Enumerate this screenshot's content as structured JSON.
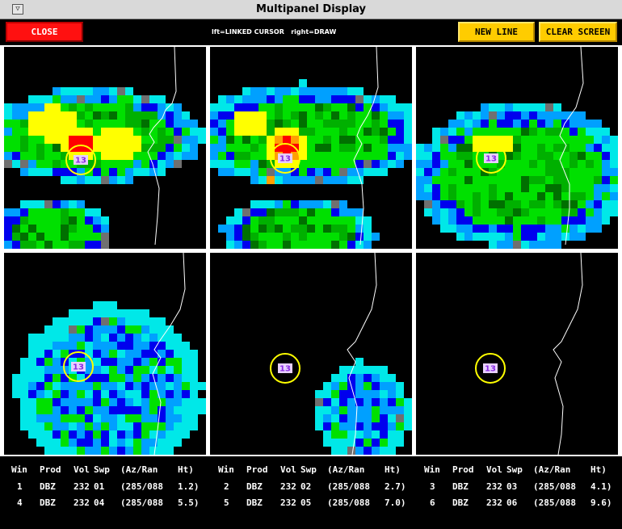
{
  "window": {
    "title": "Multipanel Display",
    "menu_glyph": "▽"
  },
  "toolbar": {
    "close_label": "CLOSE",
    "hint": "lft=LINKED CURSOR   right=DRAW",
    "new_line_label": "NEW LINE",
    "clear_screen_label": "CLEAR SCREEN"
  },
  "colors": {
    "close": "#ff1010",
    "button": "#ffcc00",
    "cursor_ring": "#ffff00",
    "marker_fill": "#e8d0ff",
    "marker_text": "#8a2be2",
    "background": "#000000",
    "divider": "#ffffff"
  },
  "panels": [
    {
      "win": "1",
      "marker": "13"
    },
    {
      "win": "2",
      "marker": "13"
    },
    {
      "win": "3",
      "marker": "13"
    },
    {
      "win": "4",
      "marker": "13"
    },
    {
      "win": "5",
      "marker": "13"
    },
    {
      "win": "6",
      "marker": "13"
    }
  ],
  "table": {
    "headers": [
      "Win",
      "Prod",
      "Vol",
      "Swp",
      "(Az/Ran",
      "Ht)"
    ],
    "rows": [
      [
        "1",
        "DBZ",
        "232",
        "01",
        "(285/088",
        "1.2)"
      ],
      [
        "2",
        "DBZ",
        "232",
        "02",
        "(285/088",
        "2.7)"
      ],
      [
        "3",
        "DBZ",
        "232",
        "03",
        "(285/088",
        "4.1)"
      ],
      [
        "4",
        "DBZ",
        "232",
        "04",
        "(285/088",
        "5.5)"
      ],
      [
        "5",
        "DBZ",
        "232",
        "05",
        "(285/088",
        "7.0)"
      ],
      [
        "6",
        "DBZ",
        "232",
        "06",
        "(285/088",
        "9.6)"
      ]
    ]
  }
}
